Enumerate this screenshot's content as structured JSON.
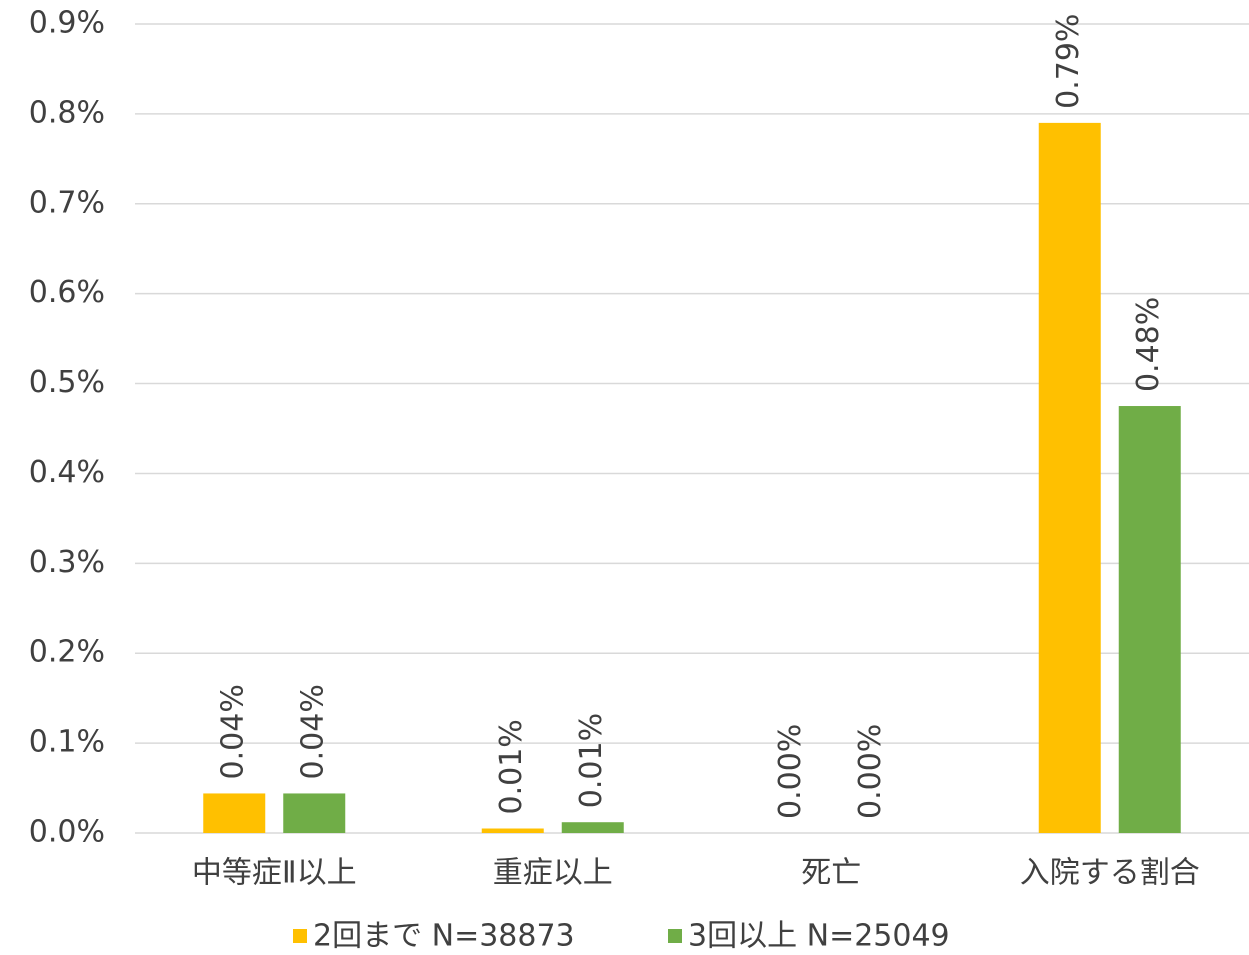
{
  "chart_data": {
    "type": "bar",
    "categories": [
      "中等症Ⅱ以上",
      "重症以上",
      "死亡",
      "入院する割合"
    ],
    "series": [
      {
        "name": "2回まで N=38873",
        "color": "#FFC000",
        "values": [
          0.044,
          0.005,
          0,
          0.79
        ],
        "value_labels": [
          "0.04%",
          "0.01%",
          "0.00%",
          "0.79%"
        ]
      },
      {
        "name": "3回以上 N=25049",
        "color": "#70AD47",
        "values": [
          0.044,
          0.012,
          0,
          0.475
        ],
        "value_labels": [
          "0.04%",
          "0.01%",
          "0.00%",
          "0.48%"
        ]
      }
    ],
    "ylim": [
      0,
      0.9
    ],
    "yticks": [
      {
        "value": 0,
        "label": "0.0%"
      },
      {
        "value": 0.1,
        "label": "0.1%"
      },
      {
        "value": 0.2,
        "label": "0.2%"
      },
      {
        "value": 0.3,
        "label": "0.3%"
      },
      {
        "value": 0.4,
        "label": "0.4%"
      },
      {
        "value": 0.5,
        "label": "0.5%"
      },
      {
        "value": 0.6,
        "label": "0.6%"
      },
      {
        "value": 0.7,
        "label": "0.7%"
      },
      {
        "value": 0.8,
        "label": "0.8%"
      },
      {
        "value": 0.9,
        "label": "0.9%"
      }
    ],
    "grid": true,
    "legend": "bottom"
  }
}
